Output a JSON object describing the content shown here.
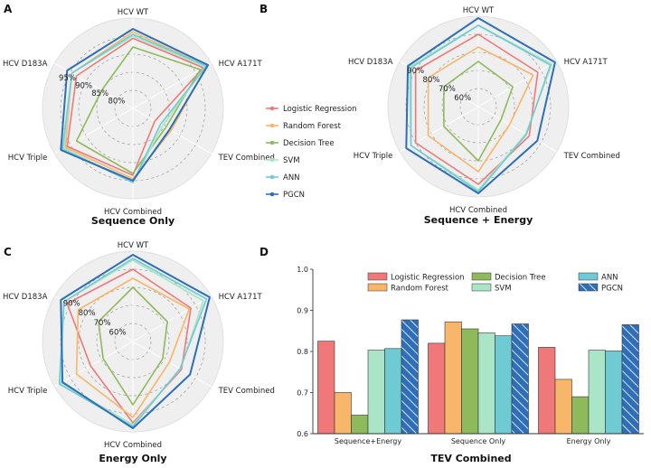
{
  "colors": {
    "Logistic Regression": "#f07878",
    "Random Forest": "#f7b66a",
    "Decision Tree": "#8fba5c",
    "SVM": "#a9e5c6",
    "ANN": "#6fcbd3",
    "PGCN": "#2e6fb7"
  },
  "legend": [
    "Logistic Regression",
    "Random Forest",
    "Decision Tree",
    "SVM",
    "ANN",
    "PGCN"
  ],
  "chart_data": [
    {
      "panel": "A",
      "type": "radar",
      "title": "Sequence Only",
      "axes": [
        "HCV WT",
        "HCV A171T",
        "TEV Combined",
        "HCV Combined",
        "HCV Triple",
        "HCV D183A"
      ],
      "rlim": [
        0.75,
        1.0
      ],
      "ring_labels": [
        {
          "value": 0.8,
          "label": "80%"
        },
        {
          "value": 0.85,
          "label": "85%"
        },
        {
          "value": 0.9,
          "label": "90%"
        },
        {
          "value": 0.95,
          "label": "95%"
        }
      ],
      "series": [
        {
          "name": "Logistic Regression",
          "values": [
            0.944,
            0.975,
            0.82,
            0.935,
            0.96,
            0.93
          ]
        },
        {
          "name": "Random Forest",
          "values": [
            0.962,
            0.985,
            0.872,
            0.945,
            0.965,
            0.945
          ]
        },
        {
          "name": "Decision Tree",
          "values": [
            0.92,
            0.965,
            0.855,
            0.93,
            0.93,
            0.85
          ]
        },
        {
          "name": "SVM",
          "values": [
            0.95,
            0.98,
            0.845,
            0.955,
            0.97,
            0.945
          ]
        },
        {
          "name": "ANN",
          "values": [
            0.955,
            0.985,
            0.838,
            0.955,
            0.975,
            0.945
          ]
        },
        {
          "name": "PGCN",
          "values": [
            0.97,
            0.99,
            0.867,
            0.95,
            0.98,
            0.96
          ]
        }
      ]
    },
    {
      "panel": "B",
      "type": "radar",
      "title": "Sequence + Energy",
      "axes": [
        "HCV WT",
        "HCV A171T",
        "TEV Combined",
        "HCV Combined",
        "HCV Triple",
        "HCV D183A"
      ],
      "rlim": [
        0.5,
        1.0
      ],
      "ring_labels": [
        {
          "value": 0.6,
          "label": "60%"
        },
        {
          "value": 0.7,
          "label": "70%"
        },
        {
          "value": 0.8,
          "label": "80%"
        },
        {
          "value": 0.9,
          "label": "90%"
        }
      ],
      "series": [
        {
          "name": "Logistic Regression",
          "values": [
            0.9,
            0.88,
            0.825,
            0.93,
            0.9,
            0.9
          ]
        },
        {
          "name": "Random Forest",
          "values": [
            0.83,
            0.85,
            0.7,
            0.86,
            0.82,
            0.82
          ]
        },
        {
          "name": "Decision Tree",
          "values": [
            0.75,
            0.72,
            0.645,
            0.8,
            0.72,
            0.72
          ]
        },
        {
          "name": "SVM",
          "values": [
            0.95,
            0.97,
            0.803,
            0.96,
            0.93,
            0.94
          ]
        },
        {
          "name": "ANN",
          "values": [
            0.95,
            0.96,
            0.807,
            0.97,
            0.93,
            0.93
          ]
        },
        {
          "name": "PGCN",
          "values": [
            0.99,
            0.99,
            0.877,
            0.98,
            0.96,
            0.95
          ]
        }
      ]
    },
    {
      "panel": "C",
      "type": "radar",
      "title": "Energy Only",
      "axes": [
        "HCV WT",
        "HCV A171T",
        "TEV Combined",
        "HCV Combined",
        "HCV Triple",
        "HCV D183A"
      ],
      "rlim": [
        0.5,
        1.0
      ],
      "ring_labels": [
        {
          "value": 0.6,
          "label": "60%"
        },
        {
          "value": 0.7,
          "label": "70%"
        },
        {
          "value": 0.8,
          "label": "80%"
        },
        {
          "value": 0.9,
          "label": "90%"
        }
      ],
      "series": [
        {
          "name": "Logistic Regression",
          "values": [
            0.9,
            0.87,
            0.81,
            0.95,
            0.77,
            0.92
          ]
        },
        {
          "name": "Random Forest",
          "values": [
            0.85,
            0.86,
            0.732,
            0.92,
            0.86,
            0.85
          ]
        },
        {
          "name": "Decision Tree",
          "values": [
            0.8,
            0.72,
            0.69,
            0.85,
            0.69,
            0.72
          ]
        },
        {
          "name": "SVM",
          "values": [
            0.95,
            0.95,
            0.803,
            0.96,
            0.96,
            0.94
          ]
        },
        {
          "name": "ANN",
          "values": [
            0.96,
            0.97,
            0.801,
            0.97,
            0.97,
            0.94
          ]
        },
        {
          "name": "PGCN",
          "values": [
            0.98,
            0.99,
            0.865,
            0.98,
            0.95,
            0.96
          ]
        }
      ]
    },
    {
      "panel": "D",
      "type": "bar",
      "title": "TEV Combined",
      "categories": [
        "Sequence+Energy",
        "Sequence Only",
        "Energy Only"
      ],
      "ylim": [
        0.6,
        1.0
      ],
      "yticks": [
        "0.6",
        "0.7",
        "0.8",
        "0.9",
        "1.0"
      ],
      "series": [
        {
          "name": "Logistic Regression",
          "values": [
            0.825,
            0.82,
            0.81
          ]
        },
        {
          "name": "Random Forest",
          "values": [
            0.7,
            0.872,
            0.732
          ]
        },
        {
          "name": "Decision Tree",
          "values": [
            0.645,
            0.855,
            0.69
          ]
        },
        {
          "name": "SVM",
          "values": [
            0.803,
            0.845,
            0.803
          ]
        },
        {
          "name": "ANN",
          "values": [
            0.807,
            0.838,
            0.801
          ]
        },
        {
          "name": "PGCN",
          "values": [
            0.877,
            0.867,
            0.865
          ]
        }
      ]
    }
  ]
}
